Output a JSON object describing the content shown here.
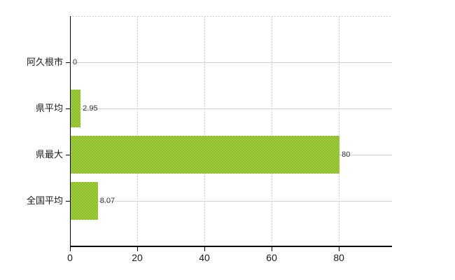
{
  "chart_data": {
    "type": "bar",
    "orientation": "horizontal",
    "title": "",
    "xlabel": "",
    "ylabel": "",
    "categories": [
      "阿久根市",
      "県平均",
      "県最大",
      "全国平均"
    ],
    "values": [
      0,
      2.95,
      80,
      8.07
    ],
    "value_labels": [
      "0",
      "2.95",
      "80",
      "8.07"
    ],
    "x_ticks": [
      0,
      20,
      40,
      60,
      80
    ],
    "x_tick_labels": [
      "0",
      "20",
      "40",
      "60",
      "80"
    ],
    "xlim": [
      0,
      95.8
    ],
    "grid": true,
    "legend": false,
    "colors": {
      "bar": "#99c335",
      "bar_dither_light": "#a2cc40",
      "bar_dither_dark": "#8cbc2b",
      "grid_dashed": "#cbcbcb",
      "grid_solid": "#ccd4cc",
      "axis": "#000000",
      "text": "#1a1a1a",
      "value_text": "#333333",
      "background": "#ffffff"
    }
  }
}
